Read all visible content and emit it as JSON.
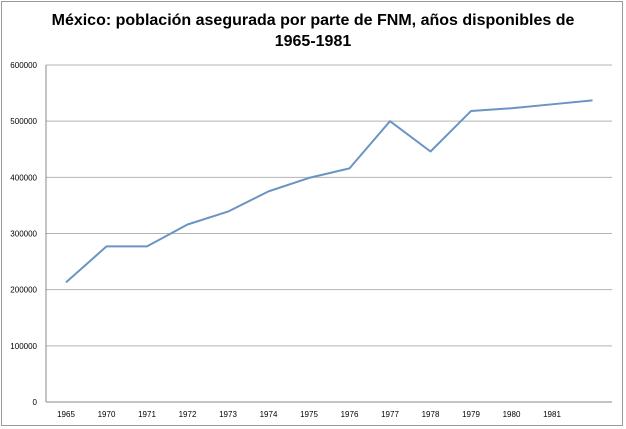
{
  "chart_data": {
    "type": "line",
    "title_line1": "México: población asegurada por parte de FNM, años disponibles de",
    "title_line2": "1965-1981",
    "xlabel": "",
    "ylabel": "",
    "categories": [
      "1965",
      "1970",
      "1971",
      "1972",
      "1973",
      "1974",
      "1975",
      "1976",
      "1977",
      "1978",
      "1979",
      "1980",
      "1981",
      ""
    ],
    "series": [
      {
        "values": [
          213000,
          277000,
          277000,
          316000,
          339000,
          375000,
          399000,
          416000,
          500000,
          446000,
          518000,
          523000,
          530000,
          537000
        ],
        "color": "#6a95c3"
      }
    ],
    "yticks": [
      0,
      100000,
      200000,
      300000,
      400000,
      500000,
      600000
    ],
    "ytick_labels": [
      "0",
      "100000",
      "200000",
      "300000",
      "400000",
      "500000",
      "600000"
    ],
    "ylim": [
      0,
      600000
    ],
    "grid": true,
    "legend": "none",
    "gridline_color": "#b3b3b3"
  }
}
